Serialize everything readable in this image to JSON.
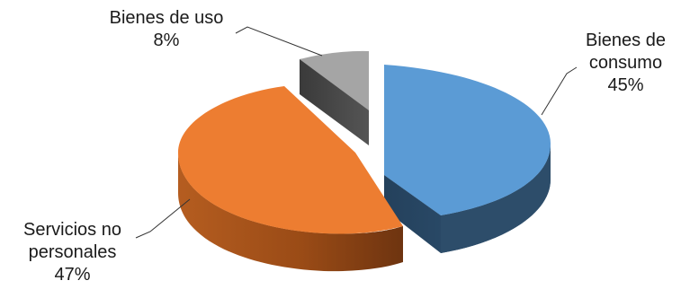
{
  "chart_data": {
    "type": "pie",
    "style": "3d-exploded",
    "title": "",
    "legend": "none",
    "slices": [
      {
        "label_lines": [
          "Bienes de",
          "consumo"
        ],
        "value": 45,
        "value_label": "45%",
        "color": "#5b9bd5",
        "side_color": "#2d4d6a"
      },
      {
        "label_lines": [
          "Servicios no",
          "personales"
        ],
        "value": 47,
        "value_label": "47%",
        "color": "#ed7d31",
        "side_color": "#8a4317"
      },
      {
        "label_lines": [
          "Bienes de uso"
        ],
        "value": 8,
        "value_label": "8%",
        "color": "#a5a5a5",
        "side_color": "#444444"
      }
    ]
  }
}
